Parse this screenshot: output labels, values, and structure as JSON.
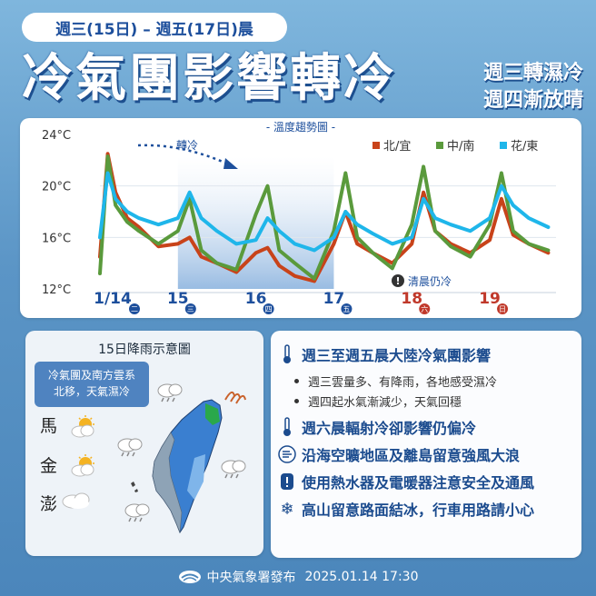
{
  "header": {
    "date_range": "週三(15日) – 週五(17日)晨",
    "title": "冷氣團影響轉冷",
    "subtitle_1": "週三轉濕冷",
    "subtitle_2": "週四漸放晴"
  },
  "chart_data": {
    "type": "line",
    "title": "- 溫度趨勢圖 -",
    "ylim": [
      12,
      24
    ],
    "y_ticks": [
      "24°C",
      "20°C",
      "16°C",
      "12°C"
    ],
    "x_days": [
      {
        "month_day": "1/14",
        "weekday": "二",
        "color": "#1d4f9c"
      },
      {
        "month_day": "15",
        "weekday": "三",
        "color": "#1d4f9c"
      },
      {
        "month_day": "16",
        "weekday": "四",
        "color": "#1d4f9c"
      },
      {
        "month_day": "17",
        "weekday": "五",
        "color": "#1d4f9c"
      },
      {
        "month_day": "18",
        "weekday": "六",
        "color": "#c0392b"
      },
      {
        "month_day": "19",
        "weekday": "日",
        "color": "#c0392b"
      }
    ],
    "x": [
      14.0,
      14.1,
      14.2,
      14.35,
      14.5,
      14.75,
      15.0,
      15.15,
      15.3,
      15.5,
      15.75,
      16.0,
      16.15,
      16.3,
      16.5,
      16.75,
      17.0,
      17.15,
      17.3,
      17.5,
      17.75,
      18.0,
      18.15,
      18.3,
      18.5,
      18.75,
      19.0,
      19.15,
      19.3,
      19.5,
      19.75
    ],
    "series": [
      {
        "name": "北/宜",
        "color": "#c8431a",
        "values": [
          14.5,
          22.5,
          19.5,
          17.5,
          16.8,
          15.3,
          15.5,
          16.0,
          14.5,
          14.0,
          13.3,
          14.8,
          15.2,
          13.8,
          13.0,
          12.6,
          15.5,
          18.0,
          15.5,
          14.8,
          14.0,
          15.5,
          19.5,
          16.5,
          15.5,
          14.8,
          15.8,
          19.0,
          16.2,
          15.5,
          14.8
        ]
      },
      {
        "name": "中/南",
        "color": "#5a9a3c",
        "values": [
          13.2,
          22.3,
          18.5,
          17.2,
          16.5,
          15.5,
          16.5,
          19.0,
          15.0,
          14.0,
          13.5,
          17.8,
          20.0,
          15.0,
          14.0,
          12.8,
          16.5,
          21.0,
          16.0,
          14.8,
          13.6,
          17.0,
          21.5,
          16.5,
          15.3,
          14.5,
          17.0,
          21.0,
          16.5,
          15.5,
          15.0
        ]
      },
      {
        "name": "花/東",
        "color": "#1fb6ea",
        "values": [
          16.0,
          21.0,
          19.0,
          18.0,
          17.5,
          17.0,
          17.5,
          19.5,
          17.5,
          16.5,
          15.5,
          15.8,
          17.5,
          16.5,
          15.5,
          15.0,
          16.0,
          18.0,
          17.0,
          16.3,
          15.5,
          16.0,
          19.0,
          17.5,
          17.0,
          16.5,
          17.5,
          20.0,
          18.5,
          17.5,
          16.8
        ]
      }
    ],
    "annotation_cold": "轉冷",
    "annotation_clear": "清晨仍冷",
    "shaded_span": [
      15.0,
      17.0
    ]
  },
  "map": {
    "title": "15日降雨示意圖",
    "callout_line1": "冷氣團及南方雲系",
    "callout_line2": "北移，天氣濕冷",
    "islands": [
      {
        "name": "馬",
        "icon": "partly-sunny-icon"
      },
      {
        "name": "金",
        "icon": "partly-sunny-icon"
      },
      {
        "name": "澎",
        "icon": "cloud-icon"
      }
    ]
  },
  "info": {
    "heading_1": "週三至週五晨大陸冷氣團影響",
    "bullet_1": "週三雲量多、有降雨，各地感受濕冷",
    "bullet_2": "週四起水氣漸減少，天氣回穩",
    "heading_2": "週六晨輻射冷卻影響仍偏冷",
    "heading_3": "沿海空曠地區及離島留意強風大浪",
    "heading_4": "使用熱水器及電暖器注意安全及通風",
    "heading_5": "高山留意路面結冰，行車用路請小心"
  },
  "footer": {
    "publisher": "中央氣象署發布",
    "datetime": "2025.01.14  17:30"
  },
  "colors": {
    "brand_blue": "#1d4f9c",
    "weekend_red": "#c0392b",
    "rain_blue": "#3a7fd0"
  }
}
